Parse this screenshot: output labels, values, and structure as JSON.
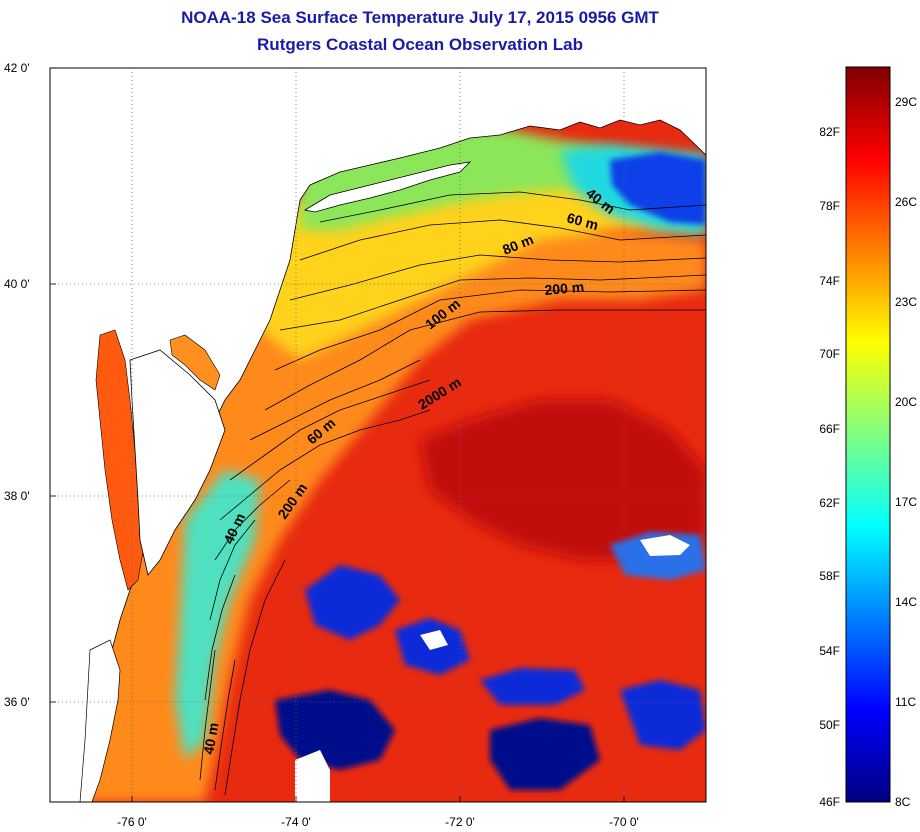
{
  "header": {
    "title": "NOAA-18 Sea Surface Temperature July 17, 2015 0956 GMT",
    "subtitle": "Rutgers Coastal Ocean Observation Lab"
  },
  "map": {
    "lat_ticks": [
      "42 0'",
      "40 0'",
      "38 0'",
      "36 0'"
    ],
    "lon_ticks": [
      "-76 0'",
      "-74 0'",
      "-72 0'",
      "-70 0'"
    ],
    "contour_labels": [
      "40 m",
      "60 m",
      "80 m",
      "200 m",
      "100 m",
      "2000 m",
      "60 m",
      "200 m",
      "40 m",
      "40 m"
    ]
  },
  "colorbar": {
    "colors": [
      "#00007f",
      "#0000ff",
      "#0080ff",
      "#00ffff",
      "#80ff80",
      "#ffff00",
      "#ff8000",
      "#ff0000",
      "#7f0000"
    ],
    "f_labels": [
      "82F",
      "78F",
      "74F",
      "70F",
      "66F",
      "62F",
      "58F",
      "54F",
      "50F",
      "46F"
    ],
    "c_labels": [
      "29C",
      "26C",
      "23C",
      "20C",
      "17C",
      "14C",
      "11C",
      "8C"
    ]
  },
  "palette": {
    "ocean_red": "#e8200e",
    "warm_core": "#c00c0c",
    "orange": "#ff8a1a",
    "yellow": "#ffd21a",
    "green": "#8be65a",
    "cyan": "#20d8e0",
    "blue": "#0a2bd8",
    "navy": "#00108a",
    "land": "#ffffff"
  }
}
